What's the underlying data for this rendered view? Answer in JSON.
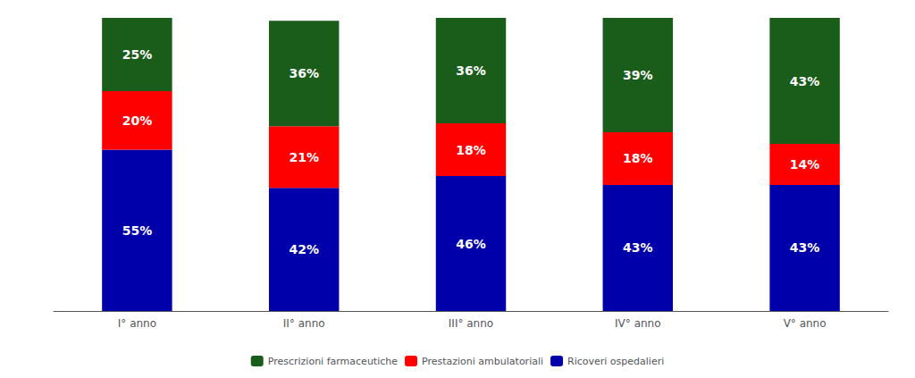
{
  "chart_data": {
    "type": "bar",
    "stacked": true,
    "categories": [
      "I° anno",
      "II° anno",
      "III° anno",
      "IV° anno",
      "V° anno"
    ],
    "series": [
      {
        "name": "Ricoveri ospedalieri",
        "color": "#0000AA",
        "values": [
          55,
          42,
          46,
          43,
          43
        ],
        "value_labels": [
          "55%",
          "42%",
          "46%",
          "43%",
          "43%"
        ]
      },
      {
        "name": "Prestazioni ambulatoriali",
        "color": "#FF0000",
        "values": [
          20,
          21,
          18,
          18,
          14
        ],
        "value_labels": [
          "20%",
          "21%",
          "18%",
          "18%",
          "14%"
        ]
      },
      {
        "name": "Prescrizioni farmaceutiche",
        "color": "#1A5C1A",
        "values": [
          25,
          36,
          36,
          39,
          43
        ],
        "value_labels": [
          "25%",
          "36%",
          "36%",
          "39%",
          "43%"
        ]
      }
    ],
    "ylim": [
      0,
      100
    ],
    "grid": false,
    "legend": "bottom",
    "data_labels": true,
    "tick_labels": "x"
  }
}
